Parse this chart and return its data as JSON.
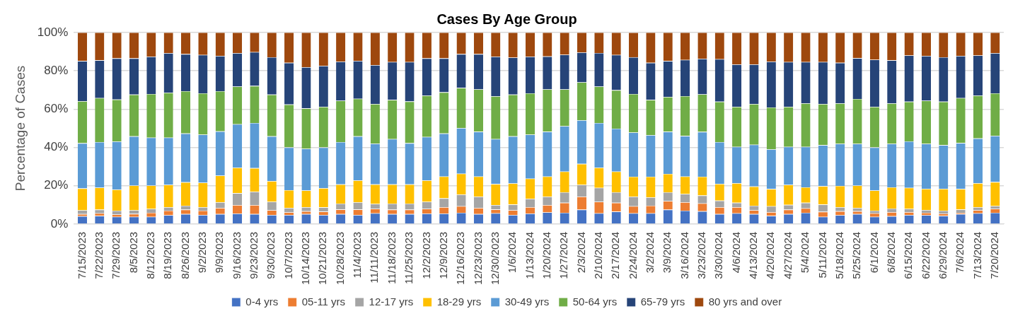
{
  "chart_data": {
    "type": "bar",
    "title": "Cases By Age Group",
    "ylabel": "Percentage of Cases",
    "stacked": true,
    "grid": "y",
    "legend": "bottom",
    "ylim": [
      0,
      100
    ],
    "yticks": [
      {
        "value": 0,
        "label": "0%"
      },
      {
        "value": 20,
        "label": "20%"
      },
      {
        "value": 40,
        "label": "40%"
      },
      {
        "value": 60,
        "label": "60%"
      },
      {
        "value": 80,
        "label": "80%"
      },
      {
        "value": 100,
        "label": "100%"
      }
    ],
    "categories": [
      "7/15/2023",
      "7/22/2023",
      "7/29/2023",
      "8/5/2023",
      "8/12/2023",
      "8/19/2023",
      "8/26/2023",
      "9/2/2023",
      "9/9/2023",
      "9/16/2023",
      "9/23/2023",
      "9/30/2023",
      "10/7/2023",
      "10/14/2023",
      "10/21/2023",
      "10/28/2023",
      "11/4/2023",
      "11/11/2023",
      "11/18/2023",
      "11/25/2023",
      "12/2/2023",
      "12/9/2023",
      "12/16/2023",
      "12/23/2023",
      "12/30/2023",
      "1/6/2024",
      "1/13/2024",
      "1/20/2024",
      "1/27/2024",
      "2/3/2024",
      "2/10/2024",
      "2/17/2024",
      "2/24/2024",
      "3/2/2024",
      "3/9/2024",
      "3/16/2024",
      "3/23/2024",
      "3/30/2024",
      "4/6/2024",
      "4/13/2024",
      "4/20/2024",
      "4/27/2024",
      "5/4/2024",
      "5/11/2024",
      "5/18/2024",
      "5/25/2024",
      "6/1/2024",
      "6/8/2024",
      "6/15/2024",
      "6/22/2024",
      "6/29/2024",
      "7/6/2024",
      "7/13/2024",
      "7/20/2024"
    ],
    "series": [
      {
        "name": "0-4 yrs",
        "color": "#4472c4",
        "values": [
          4.1,
          4.3,
          3.8,
          3.8,
          3.8,
          4.6,
          5.2,
          4.7,
          5.2,
          5.5,
          5.2,
          4.7,
          4.7,
          5.2,
          4.7,
          5.2,
          4.7,
          5.6,
          5.2,
          5.2,
          5.5,
          5.5,
          5.9,
          5.2,
          5.6,
          4.7,
          5.5,
          6.1,
          5.9,
          7.5,
          5.6,
          6.5,
          5.6,
          5.6,
          7.5,
          7.0,
          6.7,
          5.2,
          5.6,
          5.2,
          4.3,
          5.2,
          5.9,
          3.8,
          4.6,
          5.2,
          3.8,
          4.1,
          4.7,
          4.6,
          4.3,
          5.2,
          5.6,
          5.9
        ]
      },
      {
        "name": "05-11 yrs",
        "color": "#ed7d31",
        "values": [
          1.1,
          1.3,
          1.2,
          1.5,
          2.1,
          2.4,
          2.3,
          2.3,
          3.2,
          4.4,
          4.7,
          2.5,
          1.4,
          1.5,
          1.8,
          2.4,
          2.9,
          2.3,
          2.3,
          2.3,
          2.4,
          3.3,
          3.4,
          3.2,
          2.0,
          2.5,
          3.3,
          3.8,
          5.2,
          6.8,
          6.0,
          4.6,
          3.7,
          4.0,
          4.5,
          4.4,
          4.1,
          3.6,
          3.2,
          2.0,
          1.9,
          2.3,
          2.3,
          2.6,
          2.1,
          1.5,
          1.8,
          2.1,
          1.5,
          1.3,
          1.2,
          0.7,
          1.6,
          2.0
        ]
      },
      {
        "name": "12-17 yrs",
        "color": "#a5a5a5",
        "values": [
          2.0,
          1.9,
          2.0,
          1.9,
          2.0,
          1.8,
          2.1,
          1.8,
          3.0,
          6.2,
          7.0,
          4.4,
          2.3,
          2.1,
          2.2,
          3.1,
          3.8,
          2.6,
          3.2,
          3.2,
          3.7,
          4.6,
          6.1,
          5.9,
          2.3,
          3.0,
          4.4,
          4.4,
          5.5,
          6.2,
          7.3,
          5.5,
          5.0,
          4.3,
          4.6,
          4.3,
          4.1,
          3.4,
          2.3,
          2.4,
          3.1,
          2.5,
          2.9,
          3.8,
          2.1,
          1.7,
          1.4,
          1.9,
          1.7,
          1.4,
          1.5,
          1.7,
          1.6,
          1.5
        ]
      },
      {
        "name": "18-29 yrs",
        "color": "#ffc000",
        "values": [
          11.4,
          11.5,
          11.0,
          12.9,
          12.2,
          11.7,
          12.2,
          12.8,
          13.9,
          13.3,
          12.3,
          10.8,
          9.3,
          8.7,
          10.0,
          10.0,
          11.4,
          10.2,
          10.0,
          10.0,
          11.2,
          11.4,
          10.9,
          10.5,
          11.0,
          11.0,
          10.5,
          10.5,
          10.8,
          10.9,
          10.5,
          10.8,
          10.4,
          10.8,
          9.6,
          9.1,
          9.8,
          8.8,
          10.2,
          10.0,
          9.0,
          10.5,
          8.1,
          9.6,
          11.1,
          11.7,
          10.5,
          11.1,
          11.0,
          11.1,
          11.4,
          10.7,
          12.5,
          12.5
        ]
      },
      {
        "name": "30-49 yrs",
        "color": "#5b9bd5",
        "values": [
          23.6,
          23.8,
          25.1,
          25.7,
          25.0,
          24.6,
          25.5,
          25.1,
          23.1,
          22.7,
          23.6,
          23.4,
          22.3,
          21.8,
          21.3,
          22.1,
          23.0,
          21.3,
          23.7,
          21.5,
          22.7,
          22.5,
          23.8,
          23.4,
          23.5,
          24.6,
          23.0,
          23.4,
          23.7,
          22.8,
          23.4,
          22.4,
          23.1,
          21.7,
          22.0,
          21.2,
          23.4,
          21.8,
          19.0,
          21.8,
          20.7,
          19.8,
          21.1,
          21.4,
          22.0,
          21.8,
          22.5,
          22.7,
          24.3,
          23.5,
          22.8,
          24.0,
          23.4,
          24.2
        ]
      },
      {
        "name": "50-64 yrs",
        "color": "#70ad47",
        "values": [
          21.9,
          23.0,
          21.9,
          21.8,
          22.8,
          23.5,
          22.1,
          21.6,
          21.0,
          19.7,
          19.3,
          21.8,
          22.4,
          21.1,
          21.2,
          21.6,
          19.6,
          20.7,
          20.4,
          21.8,
          21.6,
          21.5,
          21.0,
          22.1,
          22.3,
          21.8,
          21.6,
          22.1,
          19.2,
          19.8,
          19.0,
          20.1,
          20.1,
          18.4,
          18.2,
          20.8,
          19.6,
          21.1,
          20.9,
          21.3,
          21.9,
          20.9,
          22.7,
          21.5,
          21.1,
          23.4,
          21.2,
          21.1,
          20.7,
          22.5,
          22.7,
          23.5,
          22.4,
          22.2
        ]
      },
      {
        "name": "65-79 yrs",
        "color": "#264478",
        "values": [
          21.0,
          19.7,
          21.5,
          18.9,
          19.5,
          20.6,
          19.3,
          20.0,
          18.4,
          17.4,
          17.7,
          19.5,
          21.8,
          21.5,
          21.4,
          20.4,
          19.8,
          20.3,
          19.8,
          20.6,
          19.4,
          17.7,
          17.6,
          18.4,
          20.7,
          19.3,
          19.1,
          17.2,
          18.1,
          15.6,
          17.5,
          18.4,
          19.2,
          19.4,
          18.7,
          18.9,
          18.6,
          22.2,
          22.1,
          20.6,
          23.9,
          23.4,
          21.6,
          21.9,
          21.2,
          21.3,
          24.6,
          22.5,
          24.1,
          23.4,
          23.2,
          22.0,
          20.9,
          20.9
        ]
      },
      {
        "name": "80 yrs and over",
        "color": "#9e480e",
        "values": [
          14.9,
          14.5,
          13.5,
          13.5,
          12.6,
          10.8,
          11.3,
          11.7,
          12.2,
          10.8,
          10.2,
          12.9,
          15.8,
          18.1,
          17.4,
          15.2,
          14.8,
          17.0,
          15.4,
          15.4,
          13.5,
          13.5,
          11.3,
          11.3,
          12.6,
          13.1,
          12.6,
          12.5,
          11.6,
          10.4,
          10.7,
          11.7,
          12.9,
          15.8,
          14.9,
          14.3,
          13.7,
          13.9,
          16.7,
          16.7,
          15.2,
          15.4,
          15.4,
          15.4,
          15.8,
          13.4,
          14.2,
          14.5,
          12.0,
          12.2,
          12.9,
          12.2,
          12.0,
          10.8
        ]
      }
    ]
  }
}
